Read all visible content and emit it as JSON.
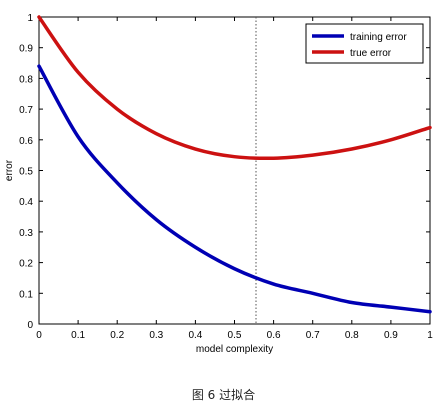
{
  "chart_data": {
    "type": "line",
    "xlabel": "model complexity",
    "ylabel": "error",
    "xlim": [
      0,
      1
    ],
    "ylim": [
      0,
      1
    ],
    "xticks": [
      "0",
      "0.1",
      "0.2",
      "0.3",
      "0.4",
      "0.5",
      "0.6",
      "0.7",
      "0.8",
      "0.9",
      "1"
    ],
    "yticks": [
      "0",
      "0.1",
      "0.2",
      "0.3",
      "0.4",
      "0.5",
      "0.6",
      "0.7",
      "0.8",
      "0.9",
      "1"
    ],
    "grid": false,
    "legend_position": "top-right",
    "x": [
      0,
      0.1,
      0.2,
      0.3,
      0.4,
      0.5,
      0.6,
      0.7,
      0.8,
      0.9,
      1.0
    ],
    "series": [
      {
        "name": "training error",
        "color": "#0000b4",
        "values": [
          0.84,
          0.61,
          0.46,
          0.34,
          0.25,
          0.18,
          0.13,
          0.1,
          0.07,
          0.055,
          0.04
        ]
      },
      {
        "name": "true error",
        "color": "#cc1111",
        "values": [
          1.0,
          0.82,
          0.7,
          0.62,
          0.57,
          0.545,
          0.54,
          0.55,
          0.57,
          0.6,
          0.64
        ]
      }
    ],
    "reference_line": {
      "x": 0.555,
      "style": "dotted",
      "color": "#555555"
    }
  },
  "caption": "图 6 过拟合"
}
